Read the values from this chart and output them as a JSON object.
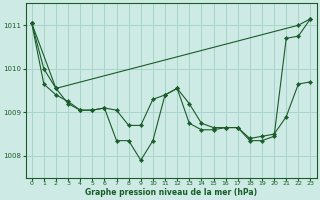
{
  "xlabel": "Graphe pression niveau de la mer (hPa)",
  "background_color": "#ceeae4",
  "grid_color": "#a8d4cc",
  "line_color": "#1a5c2a",
  "ylim": [
    1007.5,
    1011.5
  ],
  "xlim": [
    -0.5,
    23.5
  ],
  "yticks": [
    1008,
    1009,
    1010,
    1011
  ],
  "xticks": [
    0,
    1,
    2,
    3,
    4,
    5,
    6,
    7,
    8,
    9,
    10,
    11,
    12,
    13,
    14,
    15,
    16,
    17,
    18,
    19,
    20,
    21,
    22,
    23
  ],
  "series1_x": [
    0,
    1,
    2,
    3,
    4,
    5,
    6,
    7,
    8,
    9,
    10,
    11,
    12,
    13,
    14,
    15,
    16,
    17,
    18,
    19,
    20,
    21,
    22,
    23
  ],
  "series1_y": [
    1011.05,
    1010.0,
    1009.55,
    1009.2,
    1009.05,
    1009.05,
    1009.1,
    1008.35,
    1008.35,
    1007.9,
    1008.35,
    1009.4,
    1009.55,
    1008.75,
    1008.6,
    1008.6,
    1008.65,
    1008.65,
    1008.35,
    1008.35,
    1008.45,
    1010.7,
    1010.75,
    1011.15
  ],
  "series2_x": [
    0,
    2,
    22,
    23
  ],
  "series2_y": [
    1011.05,
    1009.55,
    1011.0,
    1011.15
  ],
  "series3_x": [
    0,
    1,
    2,
    3,
    4,
    5,
    6,
    7,
    8,
    9,
    10,
    11,
    12,
    13,
    14,
    15,
    16,
    17,
    18,
    19,
    20,
    21,
    22,
    23
  ],
  "series3_y": [
    1011.05,
    1009.65,
    1009.4,
    1009.25,
    1009.05,
    1009.05,
    1009.1,
    1009.05,
    1008.7,
    1008.7,
    1009.3,
    1009.4,
    1009.55,
    1009.2,
    1008.75,
    1008.65,
    1008.65,
    1008.65,
    1008.4,
    1008.45,
    1008.5,
    1008.9,
    1009.65,
    1009.7
  ]
}
